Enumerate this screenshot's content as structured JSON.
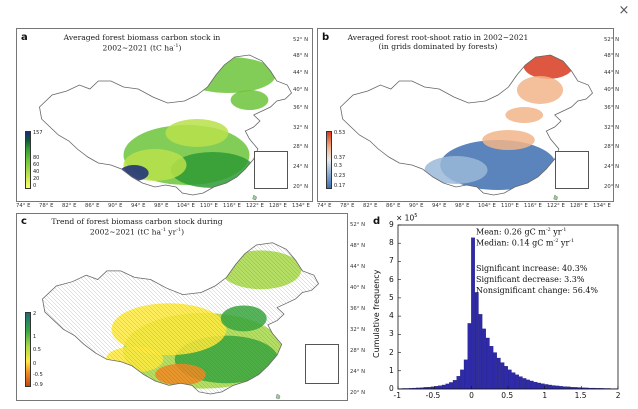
{
  "close_icon": "×",
  "latitudes": [
    "52° N",
    "48° N",
    "44° N",
    "40° N",
    "36° N",
    "32° N",
    "28° N",
    "24° N",
    "20° N"
  ],
  "longitudes": [
    "74° E",
    "78° E",
    "82° E",
    "86° E",
    "90° E",
    "94° E",
    "98° E",
    "104° E",
    "110° E",
    "116° E",
    "122° E",
    "128° E",
    "134° E"
  ],
  "panel_a": {
    "letter": "a",
    "title_line1": "Averaged forest biomass carbon stock in",
    "title_line2": "2002~2021 (tC ha",
    "title_sup": "-1",
    "title_tail": ")",
    "colorbar": [
      "157",
      "80",
      "60",
      "40",
      "20",
      "0"
    ]
  },
  "panel_b": {
    "letter": "b",
    "title_line1": "Averaged forest root-shoot ratio in 2002~2021",
    "title_line2": "(in grids dominated by forests)",
    "colorbar": [
      "0.53",
      "0.37",
      "0.3",
      "0.23",
      "0.17"
    ]
  },
  "panel_c": {
    "letter": "c",
    "title_line1": "Trend of forest biomass carbon stock during",
    "title_line2": "2002~2021 (tC ha",
    "title_sup": "-1",
    "title_mid": " yr",
    "title_sup2": "-1",
    "title_tail": ")",
    "colorbar": [
      "2",
      "1",
      "0.5",
      "0",
      "-0.5",
      "-0.9"
    ]
  },
  "panel_d": {
    "letter": "d",
    "exp_prefix": "× 10",
    "exp_power": "5",
    "ylabel": "Cumulative frequency",
    "stats": {
      "mean_text": "Mean: 0.26 gC m",
      "mean_sup1": "-2",
      "mean_mid": " yr",
      "mean_sup2": "-1",
      "median_text": "Median: 0.14 gC m",
      "median_sup1": "-2",
      "median_mid": " yr",
      "median_sup2": "-1",
      "increase": "Significant increase: 40.3%",
      "decrease": "Significant decrease: 3.3%",
      "nonsig": "Nonsignificant change: 56.4%"
    }
  },
  "chart_data": {
    "type": "bar",
    "ylabel": "Cumulative frequency",
    "y_multiplier": "× 10^5",
    "x_ticks": [
      -1,
      -0.5,
      0,
      0.5,
      1,
      1.5,
      2
    ],
    "y_ticks": [
      0,
      1,
      2,
      3,
      4,
      5,
      6,
      7,
      8,
      9
    ],
    "xlim": [
      -1,
      2
    ],
    "ylim": [
      0,
      9
    ],
    "bin_width": 0.05,
    "bin_starts": [
      -1.0,
      -0.95,
      -0.9,
      -0.85,
      -0.8,
      -0.75,
      -0.7,
      -0.65,
      -0.6,
      -0.55,
      -0.5,
      -0.45,
      -0.4,
      -0.35,
      -0.3,
      -0.25,
      -0.2,
      -0.15,
      -0.1,
      -0.05,
      0.0,
      0.05,
      0.1,
      0.15,
      0.2,
      0.25,
      0.3,
      0.35,
      0.4,
      0.45,
      0.5,
      0.55,
      0.6,
      0.65,
      0.7,
      0.75,
      0.8,
      0.85,
      0.9,
      0.95,
      1.0,
      1.05,
      1.1,
      1.15,
      1.2,
      1.25,
      1.3,
      1.35,
      1.4,
      1.45,
      1.5,
      1.55,
      1.6,
      1.65,
      1.7,
      1.75,
      1.8,
      1.85,
      1.9,
      1.95
    ],
    "values": [
      0.02,
      0.03,
      0.03,
      0.04,
      0.05,
      0.06,
      0.07,
      0.09,
      0.1,
      0.12,
      0.15,
      0.18,
      0.22,
      0.28,
      0.36,
      0.48,
      0.7,
      1.05,
      1.6,
      3.6,
      8.3,
      5.3,
      4.1,
      3.3,
      2.8,
      2.35,
      2.0,
      1.7,
      1.45,
      1.25,
      1.05,
      0.9,
      0.78,
      0.68,
      0.58,
      0.5,
      0.44,
      0.38,
      0.33,
      0.29,
      0.25,
      0.22,
      0.19,
      0.17,
      0.15,
      0.13,
      0.12,
      0.1,
      0.09,
      0.08,
      0.07,
      0.06,
      0.05,
      0.05,
      0.04,
      0.04,
      0.03,
      0.03,
      0.02,
      0.02
    ],
    "bar_color": "#2e2aa8"
  },
  "colors": {
    "biomass_ramp": [
      "#ffff66",
      "#b8e04a",
      "#6cc43a",
      "#2e9a34",
      "#0d5a3a",
      "#1a2a7a"
    ],
    "ratio_ramp": [
      "#3e6fb0",
      "#9bb8d8",
      "#e8e8e8",
      "#f2b48a",
      "#d83a1e"
    ],
    "trend_ramp": [
      "#c24a0e",
      "#f08a24",
      "#ffea40",
      "#a8d84a",
      "#3aa640",
      "#1d6a7a"
    ]
  }
}
